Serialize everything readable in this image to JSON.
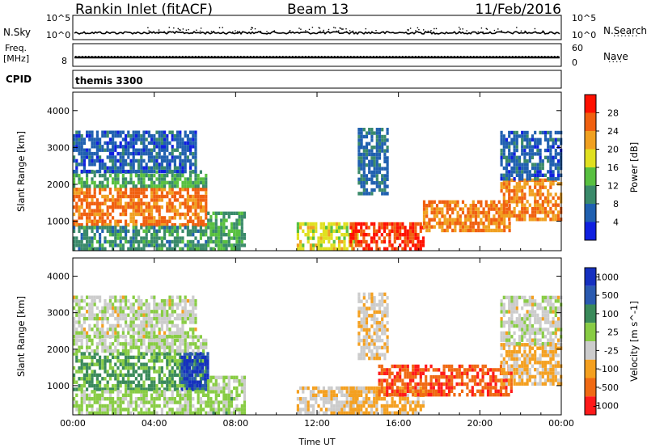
{
  "header": {
    "title": "Rankin Inlet (fitACF)",
    "beam": "Beam 13",
    "date": "11/Feb/2016"
  },
  "sky_panel": {
    "left_label": "N.Sky",
    "right_label": "N.Search",
    "left_ticks": [
      "10^5",
      "10^0"
    ],
    "right_ticks": [
      "10^5",
      "10^0"
    ]
  },
  "freq_panel": {
    "left_label_line1": "Freq.",
    "left_label_line2": "[MHz]",
    "left_ticks": [
      "8"
    ],
    "right_label": "Nave",
    "right_ticks": [
      "60",
      "0"
    ]
  },
  "cpid_panel": {
    "label": "CPID",
    "text": "themis 3300"
  },
  "colors": {
    "power_scale": [
      "#1020e0",
      "#2060b0",
      "#3a8a6a",
      "#58c040",
      "#e0e020",
      "#f0a020",
      "#f06010",
      "#ff1000"
    ],
    "velocity_scale": [
      "#ff1a1a",
      "#f06a14",
      "#f4a020",
      "#cccccc",
      "#88cc44",
      "#3a8a5a",
      "#2a5ab0",
      "#1530c0"
    ]
  },
  "chart_data": [
    {
      "type": "heatmap",
      "name_on_chart": "Power",
      "ylabel": "Slant Range [km]",
      "xlabel": "",
      "x_range_hours": [
        0,
        24
      ],
      "xticks": [
        "00:00",
        "04:00",
        "08:00",
        "12:00",
        "16:00",
        "20:00",
        "00:00"
      ],
      "yticks": [
        "1000",
        "2000",
        "3000",
        "4000"
      ],
      "ylim": [
        200,
        4500
      ],
      "colorbar": {
        "label": "Power [dB]",
        "ticks": [
          "28",
          "24",
          "20",
          "16",
          "12",
          "8",
          "4"
        ],
        "range": [
          0,
          32
        ]
      },
      "echo_regions": [
        {
          "t0": 0.0,
          "t1": 6.6,
          "r0": 850,
          "r1": 1900,
          "value": 25
        },
        {
          "t0": 0.0,
          "t1": 6.6,
          "r0": 1900,
          "r1": 2300,
          "value": 12
        },
        {
          "t0": 0.0,
          "t1": 6.0,
          "r0": 2300,
          "r1": 3400,
          "value": 6
        },
        {
          "t0": 0.0,
          "t1": 6.6,
          "r0": 200,
          "r1": 850,
          "value": 10
        },
        {
          "t0": 6.6,
          "t1": 8.5,
          "r0": 200,
          "r1": 1200,
          "value": 12
        },
        {
          "t0": 11.0,
          "t1": 14.0,
          "r0": 200,
          "r1": 900,
          "value": 18
        },
        {
          "t0": 13.6,
          "t1": 17.2,
          "r0": 200,
          "r1": 900,
          "value": 28
        },
        {
          "t0": 17.2,
          "t1": 21.5,
          "r0": 700,
          "r1": 1500,
          "value": 24
        },
        {
          "t0": 21.0,
          "t1": 24.0,
          "r0": 1000,
          "r1": 2100,
          "value": 24
        },
        {
          "t0": 21.0,
          "t1": 24.0,
          "r0": 2100,
          "r1": 3400,
          "value": 6
        },
        {
          "t0": 14.0,
          "t1": 15.5,
          "r0": 1700,
          "r1": 3500,
          "value": 7
        }
      ]
    },
    {
      "type": "heatmap",
      "name_on_chart": "Velocity",
      "ylabel": "Slant Range [km]",
      "xlabel": "Time UT",
      "x_range_hours": [
        0,
        24
      ],
      "xticks": [
        "00:00",
        "04:00",
        "08:00",
        "12:00",
        "16:00",
        "20:00",
        "00:00"
      ],
      "yticks": [
        "1000",
        "2000",
        "3000",
        "4000"
      ],
      "ylim": [
        200,
        4500
      ],
      "colorbar": {
        "label": "Velocity [m s^-1]",
        "ticks": [
          "1000",
          "500",
          "100",
          "25",
          "-25",
          "-100",
          "-500",
          "-1000"
        ],
        "range": [
          -1000,
          1000
        ]
      },
      "echo_regions": [
        {
          "t0": 0.0,
          "t1": 6.6,
          "r0": 850,
          "r1": 1900,
          "value": 300
        },
        {
          "t0": 5.3,
          "t1": 6.6,
          "r0": 850,
          "r1": 1900,
          "value": 800
        },
        {
          "t0": 0.0,
          "t1": 6.6,
          "r0": 1900,
          "r1": 2300,
          "value": 0
        },
        {
          "t0": 0.0,
          "t1": 6.0,
          "r0": 2300,
          "r1": 3400,
          "value": -80
        },
        {
          "t0": 0.0,
          "t1": 6.6,
          "r0": 200,
          "r1": 850,
          "value": 60
        },
        {
          "t0": 6.6,
          "t1": 8.5,
          "r0": 200,
          "r1": 1200,
          "value": 80
        },
        {
          "t0": 11.0,
          "t1": 14.0,
          "r0": 200,
          "r1": 900,
          "value": -200
        },
        {
          "t0": 13.6,
          "t1": 17.2,
          "r0": 200,
          "r1": 900,
          "value": -300
        },
        {
          "t0": 15.0,
          "t1": 21.5,
          "r0": 700,
          "r1": 1500,
          "value": -700
        },
        {
          "t0": 21.0,
          "t1": 24.0,
          "r0": 1000,
          "r1": 2100,
          "value": -300
        },
        {
          "t0": 21.0,
          "t1": 24.0,
          "r0": 2100,
          "r1": 3400,
          "value": -100
        },
        {
          "t0": 14.0,
          "t1": 15.5,
          "r0": 1700,
          "r1": 3500,
          "value": -200
        }
      ]
    }
  ]
}
